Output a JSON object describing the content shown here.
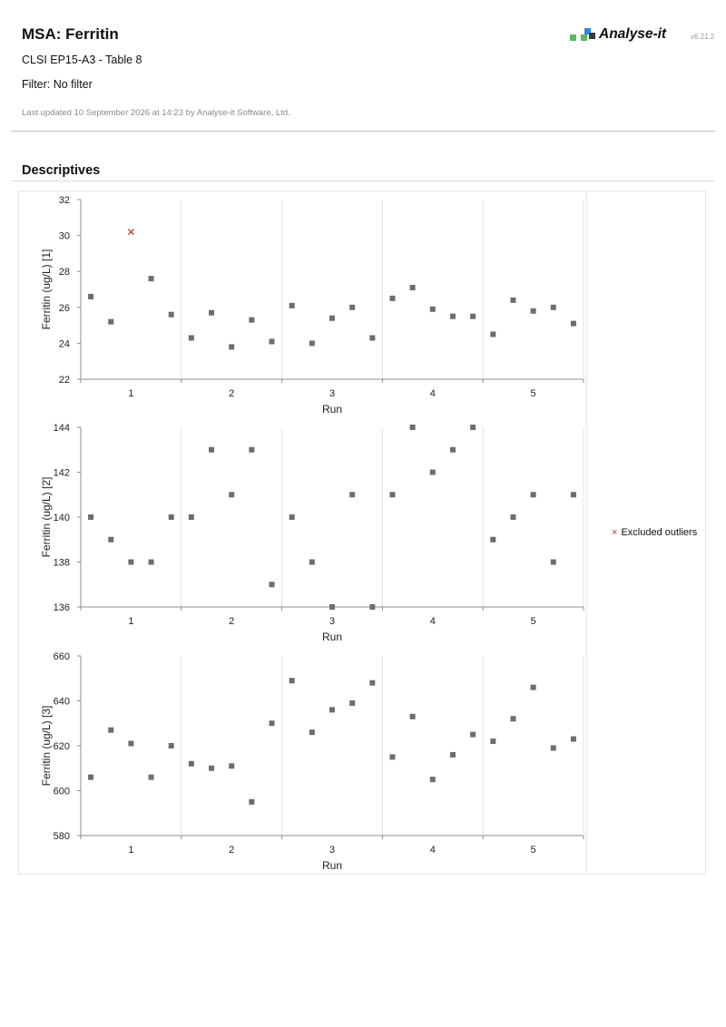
{
  "header": {
    "title": "MSA: Ferritin",
    "subtitle": "CLSI EP15-A3 - Table 8",
    "filter": "Filter: No filter",
    "updated": "Last updated 10 September 2026 at 14:23 by Analyse-it Software, Ltd.",
    "brand": "Analyse-it",
    "version": "v6.21.2",
    "brand_colors": [
      "#5cb85c",
      "#2e86de",
      "#3a3a3a"
    ]
  },
  "section_title": "Descriptives",
  "legend": {
    "marker_color": "#c0392b",
    "label": "Excluded outliers",
    "marker_glyph": "×"
  },
  "point_color": "#6d6d6d",
  "chart_data": [
    {
      "type": "scatter",
      "ylabel": "Ferritin (ug/L) [1]",
      "xlabel": "Run",
      "categories": [
        "1",
        "2",
        "3",
        "4",
        "5"
      ],
      "ylim": [
        22,
        32
      ],
      "yticks": [
        "22",
        "24",
        "26",
        "28",
        "30",
        "32"
      ],
      "grid": "vertical separators between runs",
      "runs": [
        [
          26.6,
          25.2,
          30.2,
          27.6,
          25.6
        ],
        [
          24.3,
          25.7,
          23.8,
          25.3,
          24.1
        ],
        [
          26.1,
          24.0,
          25.4,
          26.0,
          24.3
        ],
        [
          26.5,
          27.1,
          25.9,
          25.5,
          25.5
        ],
        [
          24.5,
          26.4,
          25.8,
          26.0,
          25.1
        ]
      ],
      "excluded": [
        {
          "run": "1",
          "index": 2,
          "value": 30.2
        }
      ]
    },
    {
      "type": "scatter",
      "ylabel": "Ferritin (ug/L) [2]",
      "xlabel": "Run",
      "categories": [
        "1",
        "2",
        "3",
        "4",
        "5"
      ],
      "ylim": [
        136,
        144
      ],
      "yticks": [
        "136",
        "138",
        "140",
        "142",
        "144"
      ],
      "grid": "vertical separators between runs",
      "runs": [
        [
          140,
          139,
          138,
          138,
          140
        ],
        [
          140,
          143,
          141,
          143,
          137
        ],
        [
          140,
          138,
          136,
          141,
          136
        ],
        [
          141,
          144,
          142,
          143,
          144
        ],
        [
          139,
          140,
          141,
          138,
          141
        ]
      ],
      "excluded": []
    },
    {
      "type": "scatter",
      "ylabel": "Ferritin (ug/L) [3]",
      "xlabel": "Run",
      "categories": [
        "1",
        "2",
        "3",
        "4",
        "5"
      ],
      "ylim": [
        580,
        660
      ],
      "yticks": [
        "580",
        "600",
        "620",
        "640",
        "660"
      ],
      "grid": "vertical separators between runs",
      "runs": [
        [
          606,
          627,
          621,
          606,
          620
        ],
        [
          612,
          610,
          611,
          595,
          630
        ],
        [
          649,
          626,
          636,
          639,
          648
        ],
        [
          615,
          633,
          605,
          616,
          625
        ],
        [
          622,
          632,
          646,
          619,
          623
        ]
      ],
      "excluded": []
    }
  ]
}
